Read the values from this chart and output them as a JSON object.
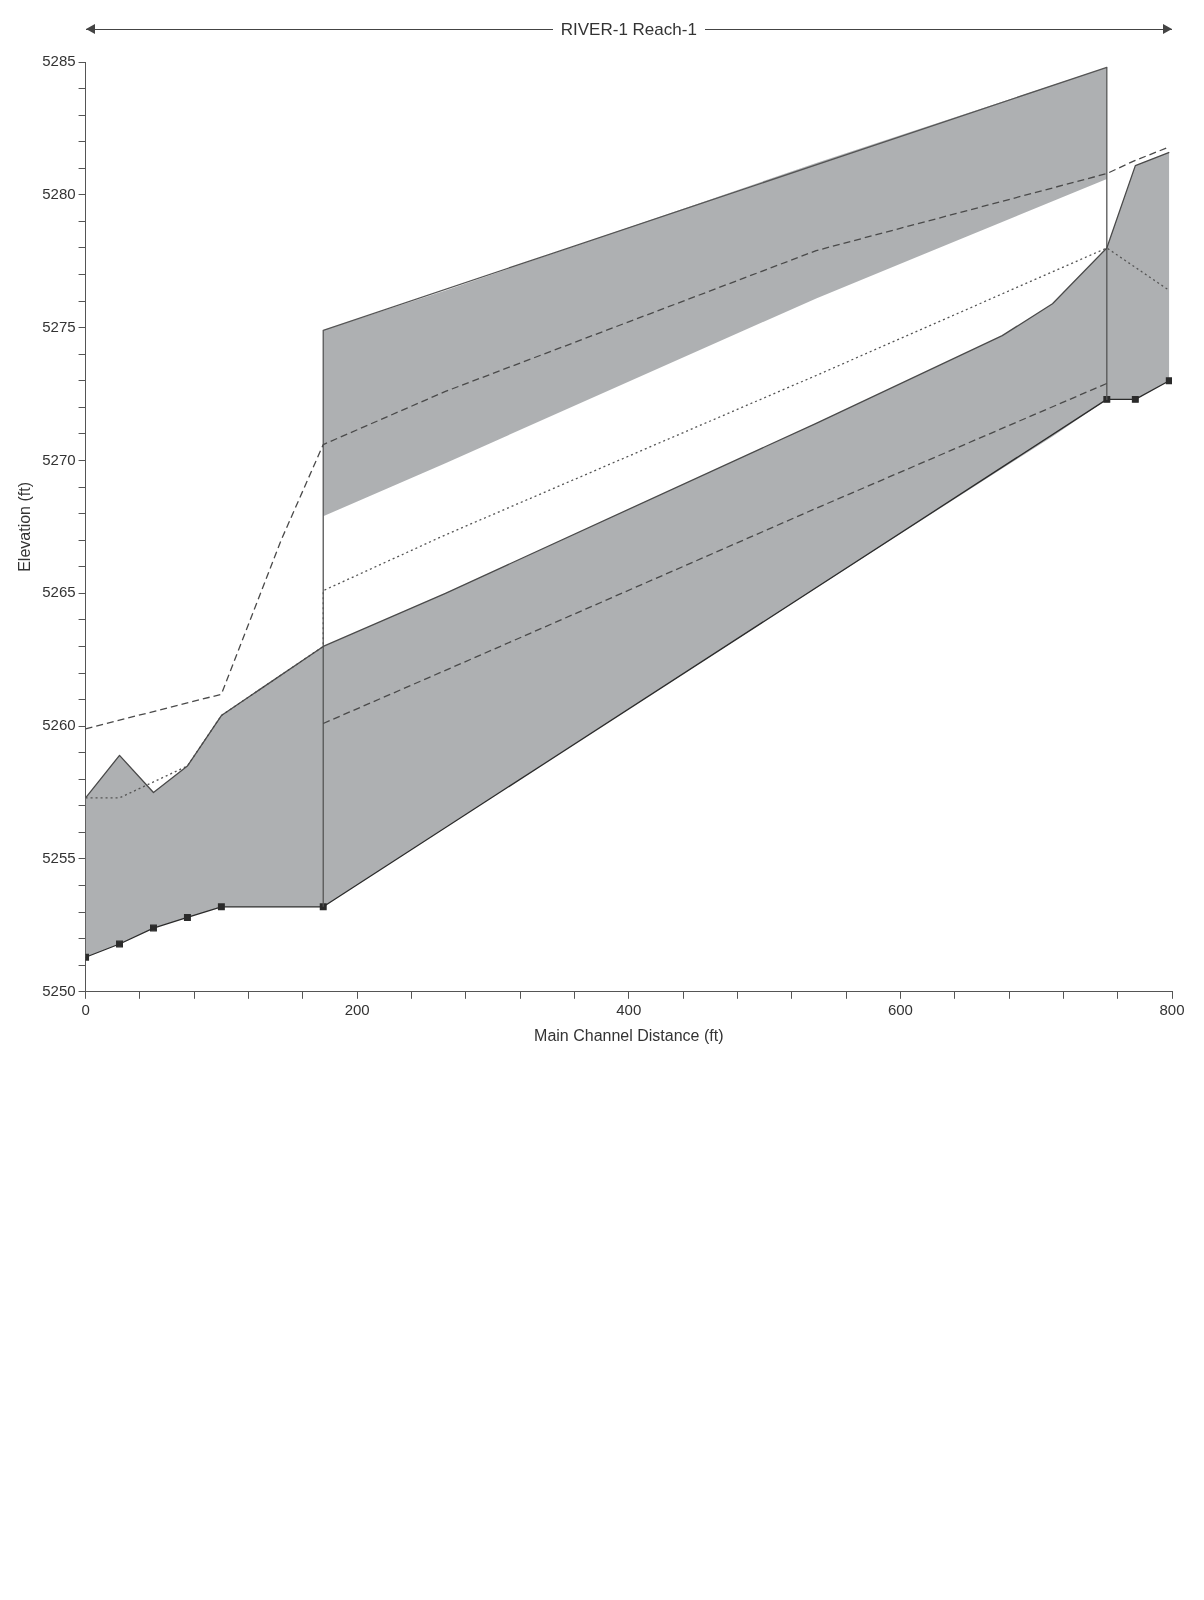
{
  "chart_data": {
    "type": "line",
    "title": "RIVER-1 Reach-1",
    "xlabel": "Main Channel Distance (ft)",
    "ylabel": "Elevation (ft)",
    "xlim": [
      0,
      800
    ],
    "xticks": [
      0,
      {
        "value": 40,
        "label": null
      },
      {
        "value": 80,
        "label": null
      },
      {
        "value": 120,
        "label": null
      },
      {
        "value": 160,
        "label": null
      },
      200,
      {
        "value": 240,
        "label": null
      },
      {
        "value": 280,
        "label": null
      },
      {
        "value": 320,
        "label": null
      },
      {
        "value": 360,
        "label": null
      },
      400,
      {
        "value": 440,
        "label": null
      },
      {
        "value": 480,
        "label": null
      },
      {
        "value": 520,
        "label": null
      },
      {
        "value": 560,
        "label": null
      },
      600,
      {
        "value": 640,
        "label": null
      },
      {
        "value": 680,
        "label": null
      },
      {
        "value": 720,
        "label": null
      },
      {
        "value": 760,
        "label": null
      },
      800
    ],
    "ylim": [
      5250,
      5285
    ],
    "yticks": [
      5250,
      {
        "value": 5251,
        "label": null
      },
      {
        "value": 5252,
        "label": null
      },
      {
        "value": 5253,
        "label": null
      },
      {
        "value": 5254,
        "label": null
      },
      5255,
      {
        "value": 5256,
        "label": null
      },
      {
        "value": 5257,
        "label": null
      },
      {
        "value": 5258,
        "label": null
      },
      {
        "value": 5259,
        "label": null
      },
      5260,
      {
        "value": 5261,
        "label": null
      },
      {
        "value": 5262,
        "label": null
      },
      {
        "value": 5263,
        "label": null
      },
      {
        "value": 5264,
        "label": null
      },
      5265,
      {
        "value": 5266,
        "label": null
      },
      {
        "value": 5267,
        "label": null
      },
      {
        "value": 5268,
        "label": null
      },
      {
        "value": 5269,
        "label": null
      },
      5270,
      {
        "value": 5271,
        "label": null
      },
      {
        "value": 5272,
        "label": null
      },
      {
        "value": 5273,
        "label": null
      },
      {
        "value": 5274,
        "label": null
      },
      5275,
      {
        "value": 5276,
        "label": null
      },
      {
        "value": 5277,
        "label": null
      },
      {
        "value": 5278,
        "label": null
      },
      {
        "value": 5279,
        "label": null
      },
      5280,
      {
        "value": 5281,
        "label": null
      },
      {
        "value": 5282,
        "label": null
      },
      {
        "value": 5283,
        "label": null
      },
      {
        "value": 5284,
        "label": null
      },
      5285
    ],
    "grid": false,
    "series": [
      {
        "color": "#4a4a4a",
        "line_style": "solid",
        "marker": "none",
        "x": [
          0,
          25,
          50,
          75,
          100,
          175,
          265,
          538,
          675,
          712,
          752,
          773,
          798
        ],
        "values": [
          5257.3,
          5258.9,
          5257.5,
          5258.5,
          5260.4,
          5263.0,
          5265.0,
          5271.4,
          5274.7,
          5275.9,
          5278.0,
          5281.1,
          5281.6
        ],
        "lower": [
          5251.3,
          5251.8,
          5252.4,
          5252.8,
          5253.2,
          5253.2,
          5256.2,
          5265.2,
          5269.7,
          5270.9,
          5272.3,
          5272.3,
          5273.0
        ],
        "upper": [
          5257.3,
          5258.9,
          5257.5,
          5258.5,
          5260.4,
          5263.0,
          5265.0,
          5271.4,
          5274.7,
          5275.9,
          5278.0,
          5281.1,
          5281.6
        ]
      },
      {
        "color": "#4a4a4a",
        "line_style": "dashed",
        "marker": "none",
        "x": [
          0,
          100,
          144,
          175,
          265,
          538,
          752,
          773,
          798
        ],
        "values": [
          5259.9,
          5261.2,
          5267.0,
          5270.6,
          5272.6,
          5277.9,
          5280.8,
          5281.3,
          5281.8
        ],
        "lower": [
          null,
          null,
          null,
          5267.9,
          5269.9,
          5276.1,
          5280.6,
          null,
          null
        ],
        "upper": [
          null,
          null,
          null,
          5274.9,
          5276.4,
          5281.2,
          5284.8,
          null,
          null
        ]
      },
      {
        "color": "#555555",
        "line_style": "dotted",
        "marker": "none",
        "x": [
          0,
          25,
          75,
          100,
          175,
          175,
          265,
          538,
          752,
          798
        ],
        "values": [
          5257.3,
          5257.3,
          5258.5,
          5260.4,
          5263.0,
          5265.1,
          5267.2,
          5273.2,
          5278.0,
          5276.4
        ]
      },
      {
        "color": "#4a4a4a",
        "line_style": "dashed",
        "marker": "none",
        "x": [
          175,
          265,
          538,
          752
        ],
        "values": [
          5260.1,
          5262.1,
          5268.2,
          5272.9
        ]
      },
      {
        "color": "#555555",
        "line_style": "solid",
        "marker": "none",
        "x": [
          175,
          175,
          752,
          752
        ],
        "values": [
          5253.2,
          5274.9,
          5284.8,
          5272.3
        ]
      },
      {
        "color": "#2b2b2b",
        "line_style": "solid",
        "marker": "square",
        "x": [
          0,
          25,
          50,
          75,
          100,
          175,
          752,
          773,
          798
        ],
        "values": [
          5251.3,
          5251.8,
          5252.4,
          5252.8,
          5253.2,
          5253.2,
          5272.3,
          5272.3,
          5273.0
        ]
      }
    ]
  }
}
